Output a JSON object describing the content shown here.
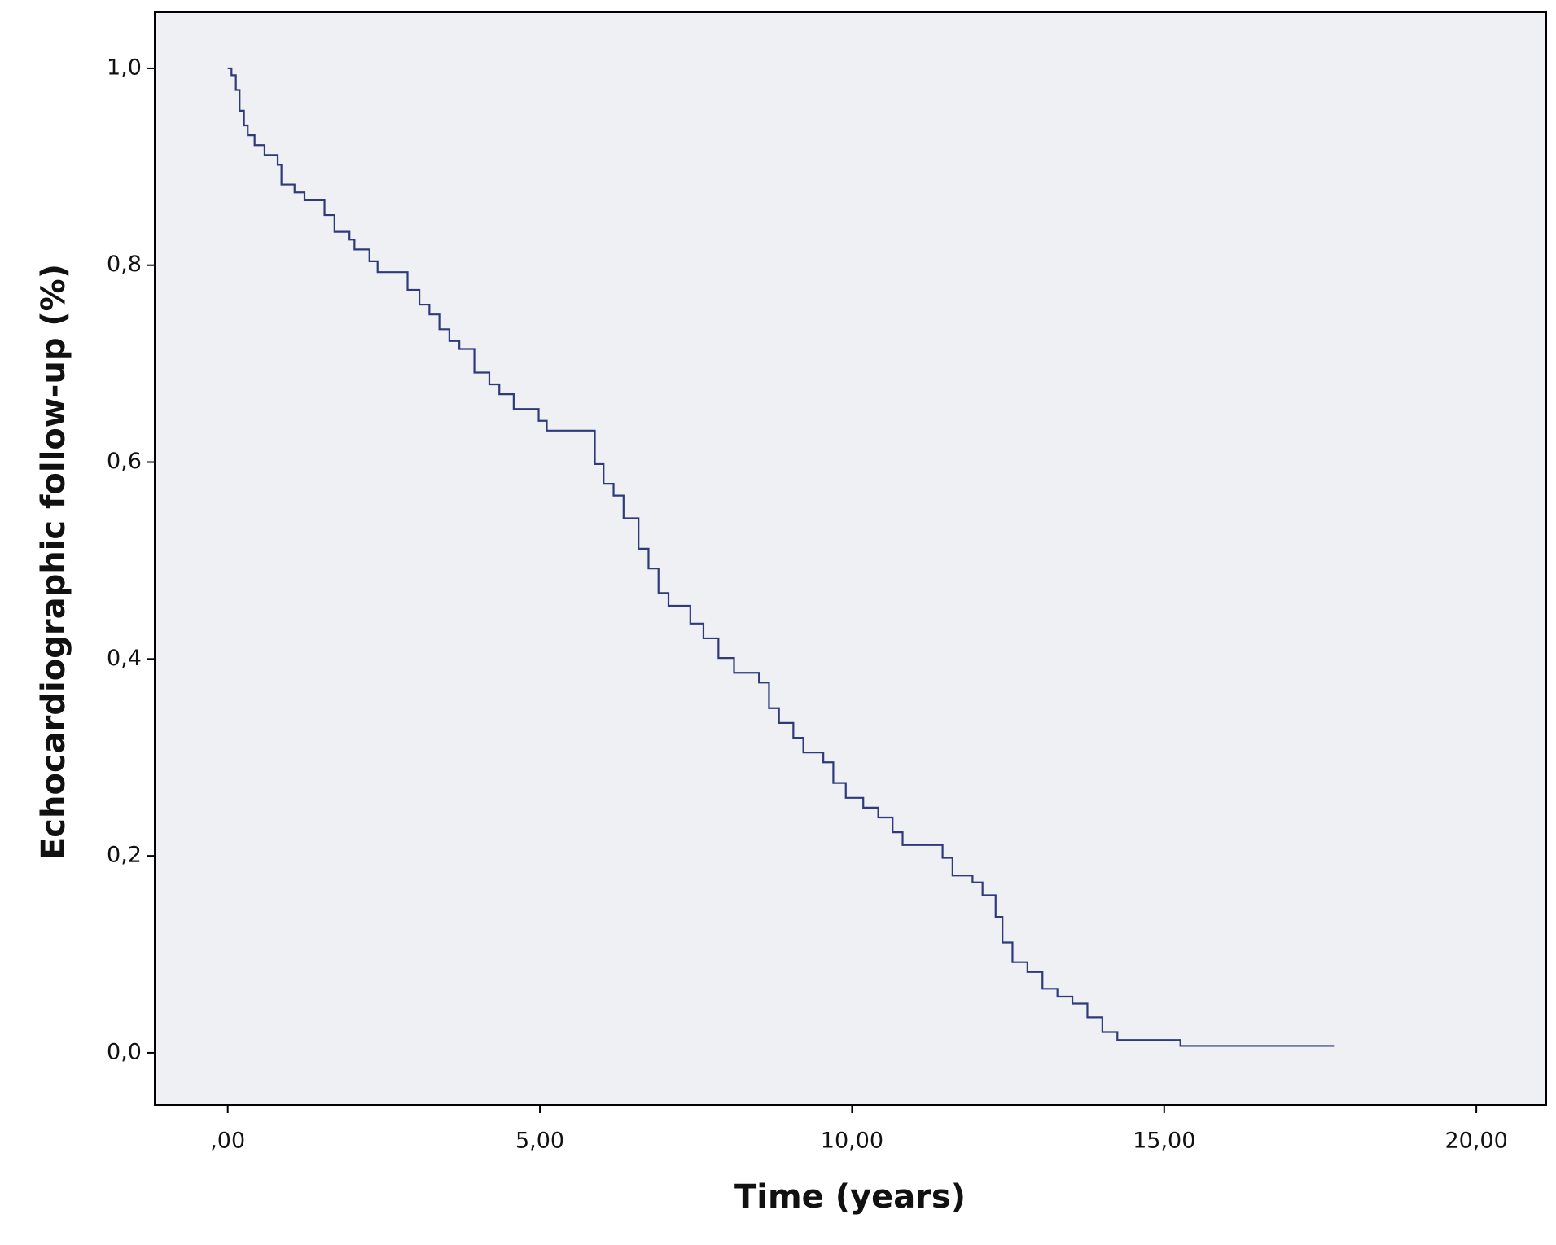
{
  "chart_data": {
    "type": "step",
    "xlabel": "Time (years)",
    "ylabel": "Echocardiographic follow-up (%)",
    "x": [
      0,
      0.06,
      0.13,
      0.19,
      0.26,
      0.32,
      0.43,
      0.59,
      0.8,
      0.86,
      1.07,
      1.23,
      1.55,
      1.71,
      1.95,
      2.03,
      2.27,
      2.4,
      2.88,
      3.07,
      3.23,
      3.39,
      3.55,
      3.71,
      3.95,
      4.19,
      4.35,
      4.58,
      4.98,
      5.11,
      5.88,
      6.02,
      6.18,
      6.34,
      6.58,
      6.74,
      6.9,
      7.06,
      7.41,
      7.62,
      7.86,
      8.11,
      8.51,
      8.67,
      8.83,
      9.06,
      9.22,
      9.54,
      9.7,
      9.9,
      10.18,
      10.42,
      10.65,
      10.81,
      11.45,
      11.61,
      11.93,
      12.09,
      12.3,
      12.41,
      12.57,
      12.81,
      13.05,
      13.29,
      13.53,
      13.77,
      14.01,
      14.25,
      15.26,
      17.72
    ],
    "values": [
      1.0,
      0.993,
      0.978,
      0.957,
      0.942,
      0.932,
      0.922,
      0.912,
      0.902,
      0.882,
      0.874,
      0.866,
      0.851,
      0.834,
      0.826,
      0.816,
      0.804,
      0.793,
      0.775,
      0.76,
      0.75,
      0.735,
      0.723,
      0.715,
      0.691,
      0.679,
      0.669,
      0.654,
      0.642,
      0.632,
      0.598,
      0.578,
      0.566,
      0.543,
      0.512,
      0.492,
      0.467,
      0.454,
      0.436,
      0.421,
      0.401,
      0.386,
      0.376,
      0.35,
      0.335,
      0.32,
      0.305,
      0.295,
      0.274,
      0.259,
      0.249,
      0.239,
      0.224,
      0.211,
      0.198,
      0.18,
      0.173,
      0.16,
      0.138,
      0.112,
      0.092,
      0.082,
      0.065,
      0.057,
      0.05,
      0.036,
      0.021,
      0.013,
      0.007,
      0.007
    ],
    "color": "#2e3a7a",
    "background": "#eff0f4",
    "xlim": [
      -1.17,
      21.12
    ],
    "ylim": [
      -0.053,
      1.057
    ],
    "xticks": [
      {
        "value": 0,
        "label": ",00"
      },
      {
        "value": 5,
        "label": "5,00"
      },
      {
        "value": 10,
        "label": "10,00"
      },
      {
        "value": 15,
        "label": "15,00"
      },
      {
        "value": 20,
        "label": "20,00"
      }
    ],
    "yticks": [
      {
        "value": 0,
        "label": "0,0"
      },
      {
        "value": 0.2,
        "label": "0,2"
      },
      {
        "value": 0.4,
        "label": "0,4"
      },
      {
        "value": 0.6,
        "label": "0,6"
      },
      {
        "value": 0.8,
        "label": "0,8"
      },
      {
        "value": 1.0,
        "label": "1,0"
      }
    ],
    "grid": false
  }
}
